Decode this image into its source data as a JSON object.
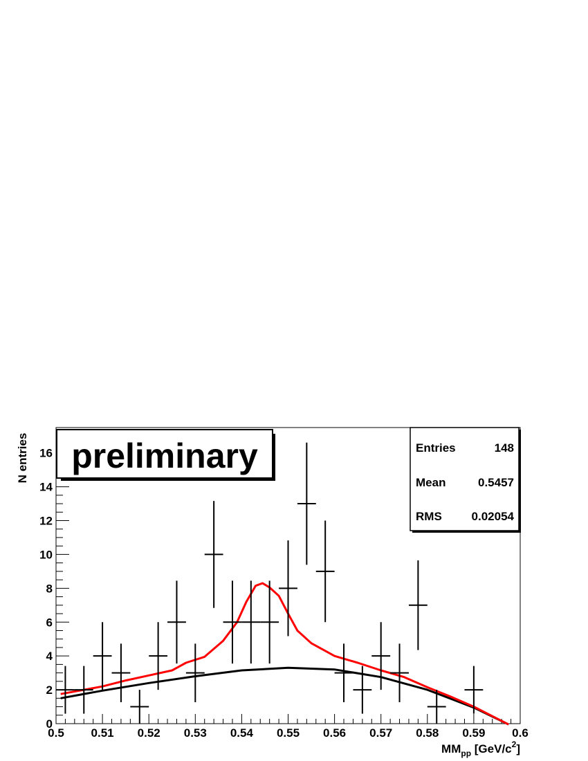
{
  "chart_data": {
    "type": "scatter",
    "title": "",
    "xlabel_main": "MM",
    "xlabel_sub": "pp",
    "xlabel_rest": " [GeV/c",
    "xlabel_sup": "2",
    "xlabel_end": "]",
    "ylabel": "N entries",
    "xlim": [
      0.5,
      0.6
    ],
    "ylim": [
      0,
      17.5
    ],
    "x_ticks": [
      "0.5",
      "0.51",
      "0.52",
      "0.53",
      "0.54",
      "0.55",
      "0.56",
      "0.57",
      "0.58",
      "0.59",
      "0.6"
    ],
    "y_ticks": [
      "0",
      "2",
      "4",
      "6",
      "8",
      "10",
      "12",
      "14",
      "16"
    ],
    "annotation": "preliminary",
    "stats": {
      "entries_label": "Entries",
      "entries_value": "148",
      "mean_label": "Mean",
      "mean_value": "0.5457",
      "rms_label": "RMS",
      "rms_value": "0.02054"
    },
    "bin_width": 0.004,
    "points": [
      {
        "x": 0.502,
        "y": 2,
        "err": 1.41
      },
      {
        "x": 0.506,
        "y": 2,
        "err": 1.41
      },
      {
        "x": 0.51,
        "y": 4,
        "err": 2.0
      },
      {
        "x": 0.514,
        "y": 3,
        "err": 1.73
      },
      {
        "x": 0.518,
        "y": 1,
        "err": 1.0
      },
      {
        "x": 0.522,
        "y": 4,
        "err": 2.0
      },
      {
        "x": 0.526,
        "y": 6,
        "err": 2.45
      },
      {
        "x": 0.53,
        "y": 3,
        "err": 1.73
      },
      {
        "x": 0.534,
        "y": 10,
        "err": 3.16
      },
      {
        "x": 0.538,
        "y": 6,
        "err": 2.45
      },
      {
        "x": 0.542,
        "y": 6,
        "err": 2.45
      },
      {
        "x": 0.546,
        "y": 6,
        "err": 2.45
      },
      {
        "x": 0.55,
        "y": 8,
        "err": 2.83
      },
      {
        "x": 0.554,
        "y": 13,
        "err": 3.61
      },
      {
        "x": 0.558,
        "y": 9,
        "err": 3.0
      },
      {
        "x": 0.562,
        "y": 3,
        "err": 1.73
      },
      {
        "x": 0.566,
        "y": 2,
        "err": 1.41
      },
      {
        "x": 0.57,
        "y": 4,
        "err": 2.0
      },
      {
        "x": 0.574,
        "y": 3,
        "err": 1.73
      },
      {
        "x": 0.578,
        "y": 7,
        "err": 2.65
      },
      {
        "x": 0.582,
        "y": 1,
        "err": 1.0
      },
      {
        "x": 0.59,
        "y": 2,
        "err": 1.41
      }
    ],
    "background_curve": {
      "color": "#000000",
      "x": [
        0.501,
        0.51,
        0.52,
        0.53,
        0.54,
        0.55,
        0.56,
        0.57,
        0.58,
        0.59,
        0.5975
      ],
      "y": [
        1.5,
        1.95,
        2.4,
        2.8,
        3.15,
        3.3,
        3.2,
        2.75,
        2.0,
        0.95,
        -0.05
      ]
    },
    "fit_curve": {
      "color": "#ff0000",
      "x": [
        0.501,
        0.51,
        0.515,
        0.52,
        0.525,
        0.528,
        0.532,
        0.536,
        0.539,
        0.541,
        0.543,
        0.5445,
        0.546,
        0.548,
        0.55,
        0.552,
        0.555,
        0.558,
        0.56,
        0.565,
        0.57,
        0.575,
        0.58,
        0.585,
        0.59,
        0.5975
      ],
      "y": [
        1.75,
        2.2,
        2.55,
        2.85,
        3.15,
        3.6,
        3.95,
        4.9,
        6.0,
        7.2,
        8.15,
        8.3,
        8.05,
        7.55,
        6.5,
        5.5,
        4.75,
        4.3,
        4.0,
        3.6,
        3.15,
        2.75,
        2.15,
        1.6,
        1.0,
        -0.05
      ]
    }
  }
}
